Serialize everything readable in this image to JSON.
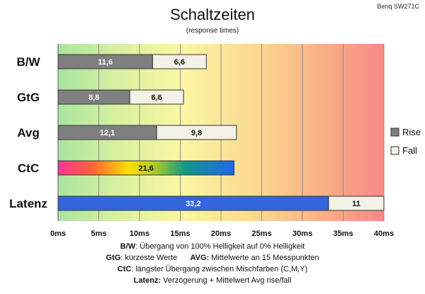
{
  "watermark": "Benq SW271C",
  "chart_data": {
    "type": "bar",
    "orientation": "horizontal",
    "stacked": true,
    "title": "Schaltzeiten",
    "subtitle": "(response times)",
    "categories": [
      "B/W",
      "GtG",
      "Avg",
      "CtC",
      "Latenz"
    ],
    "series": [
      {
        "name": "Rise",
        "color": "#7f7f7f",
        "values": [
          11.6,
          8.8,
          12.1,
          null,
          null
        ]
      },
      {
        "name": "Fall",
        "color": "#f2f2e6",
        "values": [
          6.6,
          6.6,
          9.8,
          null,
          null
        ]
      }
    ],
    "single_bars": [
      {
        "category": "CtC",
        "value": 21.6,
        "label": "21,6",
        "fill": "rainbow"
      },
      {
        "category": "Latenz",
        "value": 33.2,
        "label": "33,2",
        "fill": "#3366dd",
        "extra_value": 11,
        "extra_label": "11"
      }
    ],
    "data_labels": {
      "Rise": [
        "11,6",
        "8,8",
        "12,1",
        "",
        ""
      ],
      "Fall": [
        "6,6",
        "6,6",
        "9,8",
        "",
        ""
      ]
    },
    "xlim": [
      0,
      40
    ],
    "xticks": [
      "0ms",
      "5ms",
      "10ms",
      "15ms",
      "20ms",
      "25ms",
      "30ms",
      "35ms",
      "40ms"
    ],
    "xtick_values": [
      0,
      5,
      10,
      15,
      20,
      25,
      30,
      35,
      40
    ],
    "grid": true,
    "background": "gradient green-yellow-orange-red",
    "legend": {
      "placement": "right",
      "entries": [
        "Rise",
        "Fall"
      ]
    }
  },
  "footer": {
    "line1_key": "B/W",
    "line1_text": ":  Übergang von 100% Helligkeit auf 0% Helligkeit",
    "line2_key_a": "GtG",
    "line2_text_a": ": kürzeste  Werte",
    "line2_key_b": "AVG:",
    "line2_text_b": " Mittelwerte  an 15 Messpunkten",
    "line3_key": "CtC",
    "line3_text": ": längster Übergang  zwischen Mischfarben (C,M,Y)",
    "line4_key": "Latenz:",
    "line4_text": " Verzögerung  + Mittelwert Avg rise/fall"
  }
}
